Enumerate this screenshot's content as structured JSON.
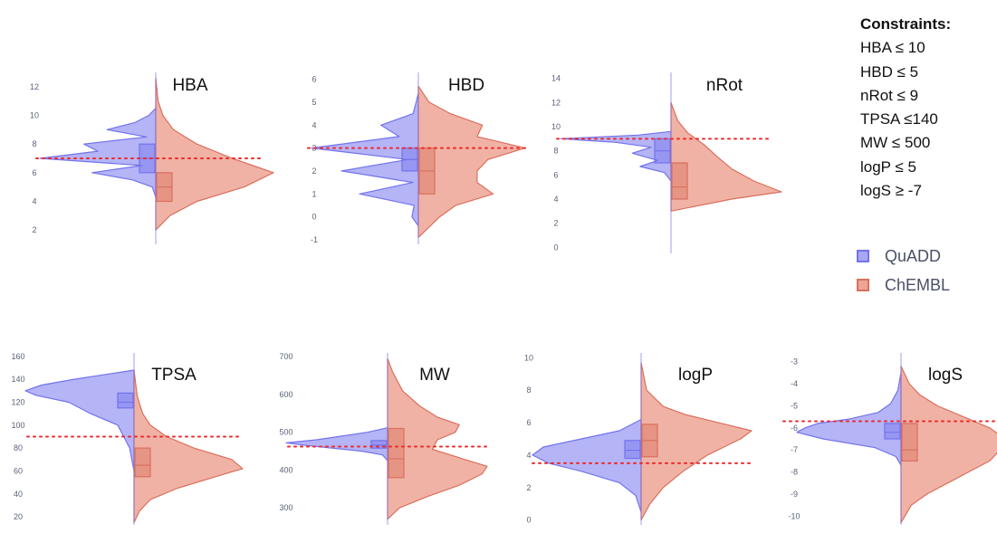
{
  "colors": {
    "quadd_fill": "#a7a7f5",
    "quadd_line": "#7373ee",
    "chembl_fill": "#eda495",
    "chembl_line": "#d9705d",
    "threshold": "#ee2a2a"
  },
  "constraints": {
    "title": "Constraints:",
    "items": [
      "HBA ≤ 10",
      "HBD ≤ 5",
      "nRot ≤ 9",
      "TPSA ≤140",
      "MW ≤ 500",
      "logP ≤ 5",
      "logS ≥ -7"
    ]
  },
  "legend": [
    {
      "name": "QuADD",
      "color": "#a7a7f5",
      "border": "#7373ee"
    },
    {
      "name": "ChEMBL",
      "color": "#eda495",
      "border": "#d9705d"
    }
  ],
  "chart_data": [
    {
      "type": "violin",
      "title": "HBA",
      "ylim": [
        1,
        13
      ],
      "yticks": [
        2,
        4,
        6,
        8,
        10,
        12
      ],
      "threshold": 7,
      "series": [
        {
          "name": "QuADD",
          "density_y": [
            4.3,
            5,
            5.5,
            6,
            6.5,
            7,
            7.5,
            8,
            8.5,
            9,
            9.5,
            10,
            10.5
          ],
          "density": [
            0,
            0.03,
            0.2,
            0.55,
            0.12,
            1,
            0.5,
            0.62,
            0.08,
            0.42,
            0.18,
            0.06,
            0
          ],
          "box": {
            "q1": 6,
            "median": 7,
            "q3": 8
          }
        },
        {
          "name": "ChEMBL",
          "density_y": [
            2,
            3,
            4,
            5,
            6,
            7,
            8,
            9,
            10,
            11,
            12.6
          ],
          "density": [
            0,
            0.12,
            0.35,
            0.75,
            1,
            0.65,
            0.35,
            0.15,
            0.06,
            0.02,
            0
          ],
          "box": {
            "q1": 4,
            "median": 5,
            "q3": 6
          }
        }
      ]
    },
    {
      "type": "violin",
      "title": "HBD",
      "ylim": [
        -1.2,
        6.3
      ],
      "yticks": [
        -1,
        0,
        1,
        2,
        3,
        4,
        5,
        6
      ],
      "threshold": 3,
      "series": [
        {
          "name": "QuADD",
          "density_y": [
            -0.4,
            0,
            0.5,
            1,
            1.5,
            2,
            2.5,
            3,
            3.5,
            4,
            4.5,
            5,
            5.4
          ],
          "density": [
            0,
            0.06,
            0.04,
            0.55,
            0.05,
            0.72,
            0.1,
            1,
            0.18,
            0.35,
            0.05,
            0.02,
            0
          ],
          "box": {
            "q1": 2,
            "median": 2.5,
            "q3": 3
          }
        },
        {
          "name": "ChEMBL",
          "density_y": [
            -0.9,
            0,
            0.5,
            1,
            1.5,
            2,
            2.5,
            3,
            3.5,
            4,
            4.5,
            5,
            5.7
          ],
          "density": [
            0,
            0.2,
            0.35,
            0.7,
            0.55,
            0.55,
            0.65,
            1,
            0.55,
            0.6,
            0.3,
            0.1,
            0
          ],
          "box": {
            "q1": 1,
            "median": 2,
            "q3": 3
          }
        }
      ]
    },
    {
      "type": "violin",
      "title": "nRot",
      "ylim": [
        -0.5,
        14.5
      ],
      "yticks": [
        0,
        2,
        4,
        6,
        8,
        10,
        12,
        14
      ],
      "threshold": 9,
      "series": [
        {
          "name": "QuADD",
          "density_y": [
            5.5,
            6.2,
            6.7,
            7.2,
            7.8,
            8.3,
            8.7,
            9,
            9.3,
            9.6
          ],
          "density": [
            0,
            0.06,
            0.28,
            0.12,
            0.35,
            0.18,
            0.5,
            1,
            0.3,
            0
          ],
          "box": {
            "q1": 7,
            "median": 8,
            "q3": 9
          }
        },
        {
          "name": "ChEMBL",
          "density_y": [
            3,
            4,
            4.6,
            5.5,
            6.5,
            7.5,
            8.5,
            9.5,
            10.5,
            12
          ],
          "density": [
            0,
            0.55,
            1,
            0.75,
            0.55,
            0.42,
            0.3,
            0.15,
            0.06,
            0
          ],
          "box": {
            "q1": 4,
            "median": 5,
            "q3": 7
          }
        }
      ]
    },
    {
      "type": "violin",
      "title": "TPSA",
      "ylim": [
        13,
        163
      ],
      "yticks": [
        20,
        40,
        60,
        80,
        100,
        120,
        140,
        160
      ],
      "threshold": 90,
      "series": [
        {
          "name": "QuADD",
          "density_y": [
            60,
            80,
            100,
            110,
            120,
            126,
            130,
            135,
            140,
            148
          ],
          "density": [
            0,
            0.04,
            0.15,
            0.4,
            0.6,
            0.9,
            1,
            0.85,
            0.55,
            0
          ],
          "box": {
            "q1": 115,
            "median": 120,
            "q3": 128
          }
        },
        {
          "name": "ChEMBL",
          "density_y": [
            15,
            25,
            35,
            45,
            55,
            62,
            70,
            80,
            90,
            100,
            110,
            125,
            148
          ],
          "density": [
            0,
            0.05,
            0.15,
            0.4,
            0.75,
            1,
            0.9,
            0.55,
            0.3,
            0.15,
            0.08,
            0.03,
            0
          ],
          "box": {
            "q1": 55,
            "median": 65,
            "q3": 80
          }
        }
      ]
    },
    {
      "type": "violin",
      "title": "MW",
      "ylim": [
        255,
        710
      ],
      "yticks": [
        300,
        400,
        500,
        600,
        700
      ],
      "threshold": 462,
      "series": [
        {
          "name": "QuADD",
          "density_y": [
            425,
            440,
            450,
            458,
            465,
            472,
            480,
            490,
            500,
            512
          ],
          "density": [
            0,
            0.05,
            0.25,
            0.55,
            0.8,
            1,
            0.7,
            0.45,
            0.2,
            0
          ],
          "box": {
            "q1": 458,
            "median": 466,
            "q3": 478
          }
        },
        {
          "name": "ChEMBL",
          "density_y": [
            270,
            300,
            330,
            360,
            390,
            410,
            430,
            455,
            480,
            500,
            520,
            540,
            570,
            610,
            660,
            695
          ],
          "density": [
            0,
            0.12,
            0.4,
            0.72,
            0.95,
            1,
            0.75,
            0.45,
            0.5,
            0.68,
            0.72,
            0.5,
            0.32,
            0.15,
            0.05,
            0
          ],
          "box": {
            "q1": 380,
            "median": 430,
            "q3": 510
          }
        }
      ]
    },
    {
      "type": "violin",
      "title": "logP",
      "ylim": [
        -0.3,
        10.3
      ],
      "yticks": [
        0,
        2,
        4,
        6,
        8,
        10
      ],
      "threshold": 3.5,
      "series": [
        {
          "name": "QuADD",
          "density_y": [
            0.5,
            1.5,
            2.3,
            3,
            3.5,
            4,
            4.5,
            5,
            5.5,
            6.2
          ],
          "density": [
            0,
            0.05,
            0.2,
            0.55,
            0.85,
            1,
            0.9,
            0.55,
            0.2,
            0
          ],
          "box": {
            "q1": 3.8,
            "median": 4.3,
            "q3": 4.9
          }
        },
        {
          "name": "ChEMBL",
          "density_y": [
            0,
            1,
            2,
            3,
            4,
            4.5,
            5,
            5.5,
            6,
            6.5,
            7,
            8,
            9.7
          ],
          "density": [
            0,
            0.08,
            0.2,
            0.38,
            0.6,
            0.75,
            0.9,
            1,
            0.7,
            0.4,
            0.2,
            0.05,
            0
          ],
          "box": {
            "q1": 3.9,
            "median": 4.9,
            "q3": 5.9
          }
        }
      ]
    },
    {
      "type": "violin",
      "title": "logS",
      "ylim": [
        -10.4,
        -2.6
      ],
      "yticks": [
        -10,
        -9,
        -8,
        -7,
        -6,
        -5,
        -4,
        -3
      ],
      "threshold": -5.7,
      "series": [
        {
          "name": "QuADD",
          "density_y": [
            -7.7,
            -7.3,
            -6.9,
            -6.5,
            -6.2,
            -6,
            -5.8,
            -5.6,
            -5.3,
            -4.9,
            -4.3,
            -3.5
          ],
          "density": [
            0,
            0.05,
            0.25,
            0.75,
            1,
            0.92,
            0.8,
            0.5,
            0.22,
            0.1,
            0.03,
            0
          ],
          "box": {
            "q1": -6.5,
            "median": -6.2,
            "q3": -5.8
          }
        },
        {
          "name": "ChEMBL",
          "density_y": [
            -10.3,
            -9.5,
            -9,
            -8.5,
            -8,
            -7.5,
            -7,
            -6.5,
            -6,
            -5.5,
            -5,
            -4.5,
            -4,
            -3.2
          ],
          "density": [
            0,
            0.1,
            0.25,
            0.45,
            0.65,
            0.85,
            0.95,
            1,
            0.85,
            0.6,
            0.35,
            0.18,
            0.08,
            0
          ],
          "box": {
            "q1": -7.5,
            "median": -7,
            "q3": -5.8
          }
        }
      ]
    }
  ]
}
